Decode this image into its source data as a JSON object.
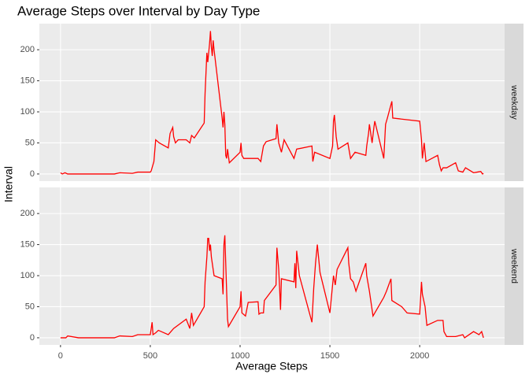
{
  "chart_data": {
    "type": "line",
    "title": "Average Steps over Interval by Day Type",
    "x_label": "Average Steps",
    "y_label": "Interval",
    "color": "#ff0000",
    "grid": true,
    "xlim": [
      -117.75,
      2472.75
    ],
    "xticks": [
      0,
      500,
      1000,
      1500,
      2000
    ],
    "ylim": [
      -11.5,
      242
    ],
    "yticks": [
      0,
      50,
      100,
      150,
      200
    ],
    "panels": [
      {
        "label": "weekday",
        "x": [
          0,
          10,
          25,
          40,
          100,
          200,
          300,
          330,
          400,
          430,
          500,
          505,
          520,
          530,
          550,
          600,
          610,
          625,
          630,
          640,
          655,
          700,
          720,
          730,
          745,
          800,
          805,
          815,
          820,
          830,
          835,
          840,
          845,
          850,
          855,
          900,
          905,
          910,
          915,
          920,
          925,
          930,
          940,
          1000,
          1005,
          1010,
          1020,
          1100,
          1115,
          1130,
          1145,
          1200,
          1205,
          1215,
          1230,
          1245,
          1300,
          1315,
          1400,
          1405,
          1415,
          1500,
          1515,
          1520,
          1525,
          1535,
          1545,
          1600,
          1615,
          1640,
          1700,
          1705,
          1715,
          1720,
          1735,
          1745,
          1750,
          1800,
          1810,
          1820,
          1845,
          1850,
          2000,
          2010,
          2015,
          2025,
          2035,
          2100,
          2110,
          2120,
          2130,
          2150,
          2200,
          2215,
          2240,
          2255,
          2300,
          2320,
          2340,
          2350,
          2355
        ],
        "values": [
          2,
          0,
          2,
          0,
          0,
          0,
          0,
          2,
          1,
          3,
          3,
          5,
          20,
          55,
          50,
          42,
          65,
          75,
          60,
          50,
          55,
          55,
          50,
          62,
          58,
          82,
          130,
          195,
          180,
          210,
          230,
          205,
          190,
          215,
          200,
          90,
          75,
          100,
          80,
          30,
          25,
          40,
          18,
          35,
          50,
          30,
          25,
          25,
          20,
          45,
          52,
          57,
          80,
          50,
          35,
          55,
          25,
          40,
          45,
          20,
          35,
          25,
          45,
          85,
          95,
          60,
          40,
          50,
          25,
          35,
          30,
          45,
          65,
          80,
          50,
          75,
          85,
          25,
          80,
          90,
          117,
          90,
          85,
          55,
          25,
          50,
          20,
          30,
          15,
          5,
          10,
          10,
          18,
          5,
          3,
          10,
          2,
          3,
          4,
          0,
          1
        ]
      },
      {
        "label": "weekend",
        "x": [
          0,
          30,
          40,
          100,
          300,
          330,
          400,
          430,
          500,
          510,
          515,
          530,
          545,
          600,
          630,
          700,
          720,
          730,
          740,
          800,
          805,
          815,
          820,
          825,
          830,
          835,
          840,
          845,
          855,
          900,
          905,
          910,
          915,
          920,
          930,
          935,
          1000,
          1005,
          1010,
          1030,
          1045,
          1100,
          1105,
          1115,
          1130,
          1135,
          1200,
          1205,
          1215,
          1220,
          1225,
          1230,
          1300,
          1305,
          1310,
          1315,
          1330,
          1400,
          1410,
          1420,
          1430,
          1445,
          1500,
          1505,
          1520,
          1530,
          1540,
          1600,
          1605,
          1615,
          1630,
          1645,
          1700,
          1705,
          1720,
          1740,
          1800,
          1815,
          1840,
          1845,
          1900,
          1930,
          2000,
          2010,
          2015,
          2030,
          2040,
          2100,
          2130,
          2135,
          2150,
          2200,
          2240,
          2250,
          2300,
          2330,
          2345,
          2350,
          2355
        ],
        "values": [
          0,
          0,
          3,
          0,
          0,
          3,
          2,
          5,
          5,
          25,
          5,
          8,
          12,
          5,
          15,
          30,
          15,
          40,
          20,
          50,
          90,
          130,
          160,
          160,
          140,
          150,
          130,
          120,
          100,
          95,
          70,
          150,
          165,
          120,
          30,
          18,
          50,
          75,
          40,
          35,
          57,
          58,
          38,
          40,
          40,
          60,
          85,
          145,
          110,
          80,
          45,
          95,
          90,
          120,
          80,
          140,
          100,
          25,
          80,
          120,
          150,
          105,
          40,
          55,
          100,
          85,
          110,
          145,
          120,
          95,
          90,
          75,
          120,
          100,
          75,
          35,
          65,
          75,
          95,
          60,
          50,
          40,
          38,
          90,
          70,
          50,
          20,
          28,
          28,
          10,
          2,
          2,
          5,
          0,
          10,
          5,
          10,
          5,
          0
        ]
      }
    ]
  }
}
